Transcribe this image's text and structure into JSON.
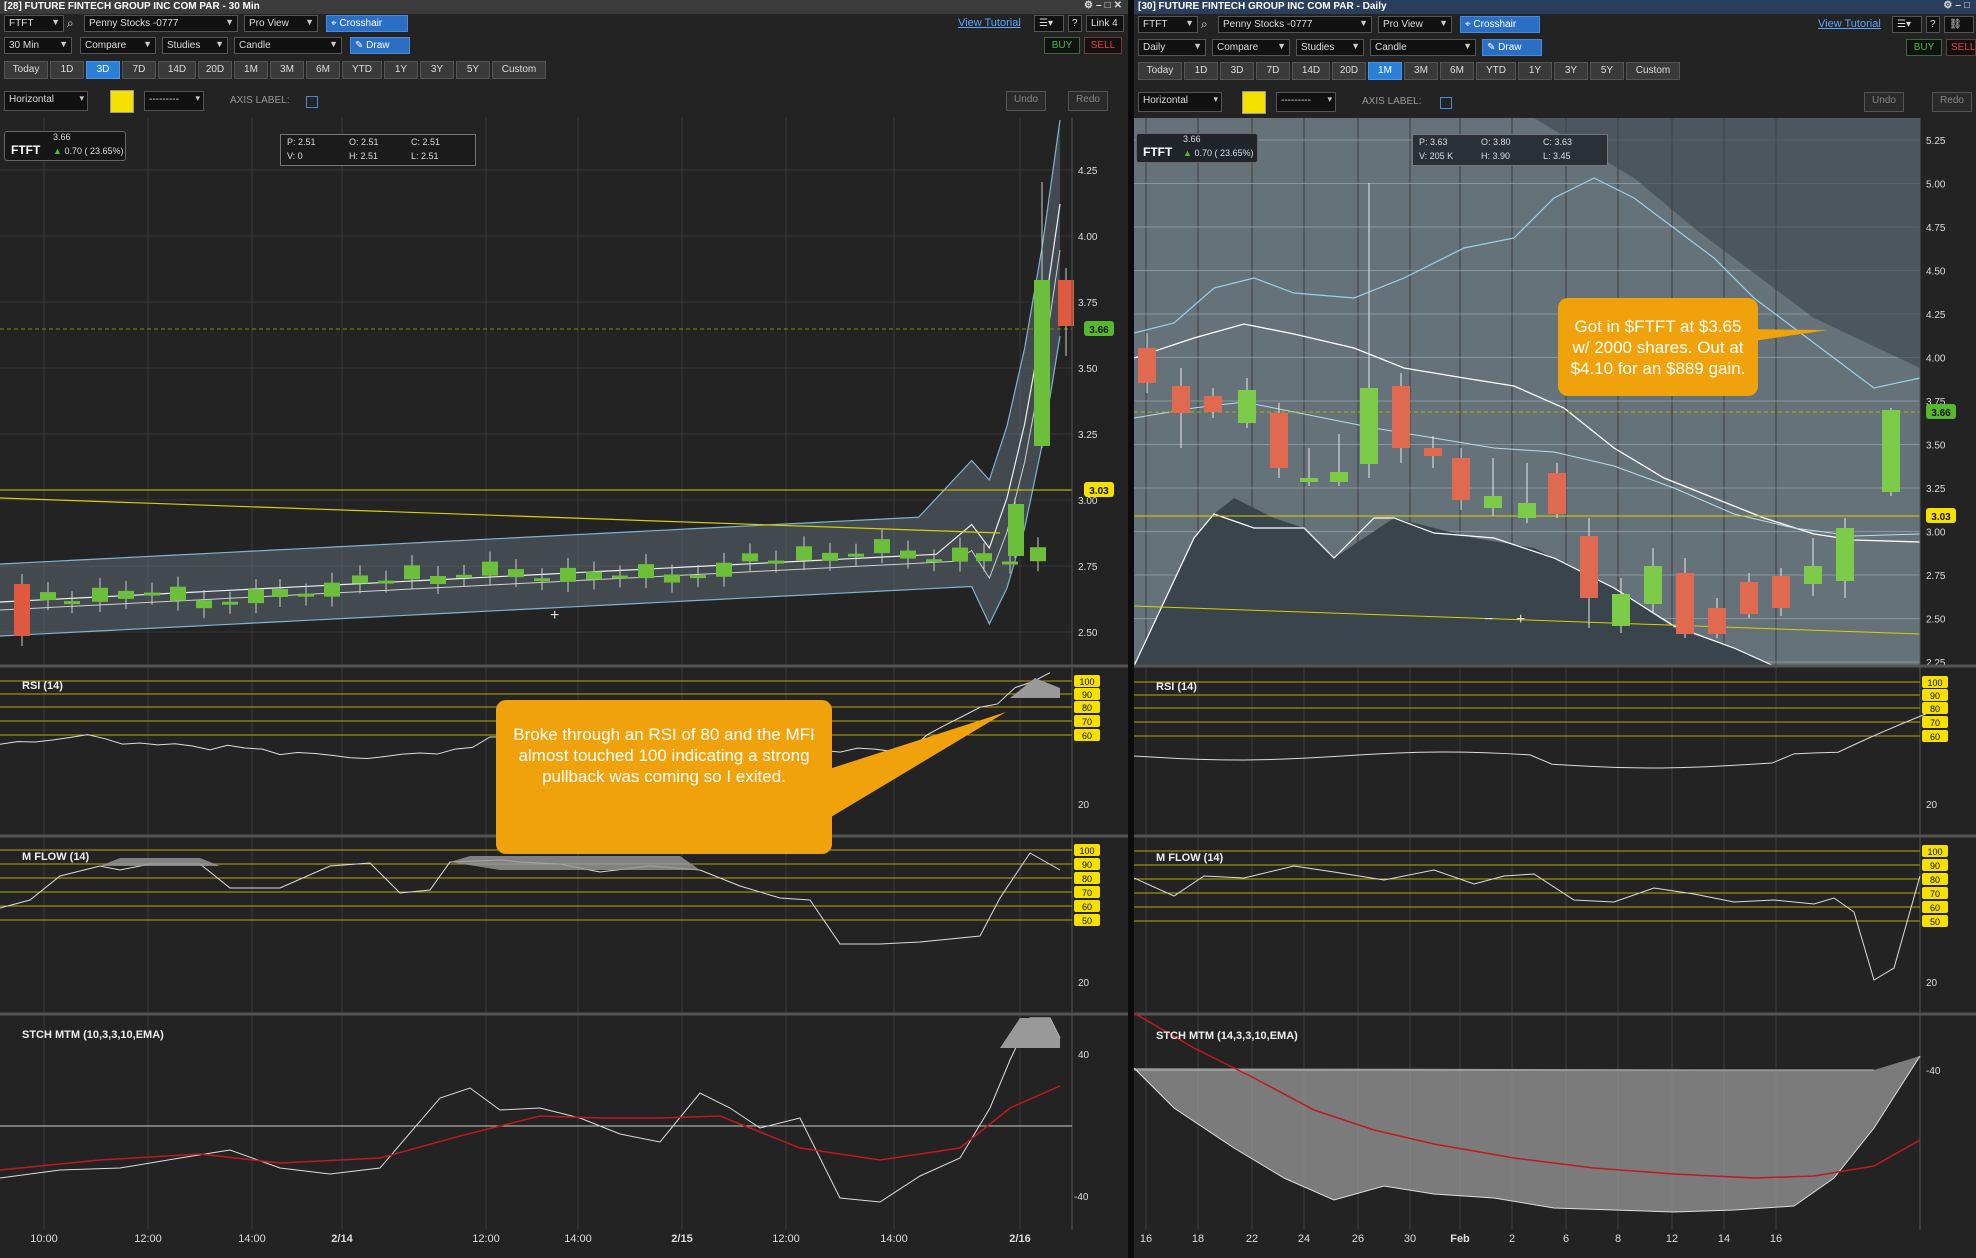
{
  "left": {
    "title": "[28] FUTURE FINTECH GROUP INC COM PAR - 30 Min",
    "symbol": "FTFT",
    "watchlist": "Penny Stocks -0777",
    "view": "Pro View",
    "crosshair": "Crosshair",
    "tutorial": "View Tutorial",
    "link": "Link 4",
    "interval": "30 Min",
    "compare": "Compare",
    "studies": "Studies",
    "style": "Candle",
    "draw": "Draw",
    "buy": "BUY",
    "sell": "SELL",
    "ranges": [
      "Today",
      "1D",
      "3D",
      "7D",
      "14D",
      "20D",
      "1M",
      "3M",
      "6M",
      "YTD",
      "1Y",
      "3Y",
      "5Y",
      "Custom"
    ],
    "active_range": "3D",
    "draw_tool": "Horizontal",
    "line_style": "---------",
    "axis_label": "AXIS LABEL:",
    "undo": "Undo",
    "redo": "Redo",
    "quote": {
      "price": "3.66",
      "change": "0.70 ( 23.65%)"
    },
    "ohlc": {
      "p": "P: 2.51",
      "o": "O: 2.51",
      "c": "C: 2.51",
      "v": "V: 0",
      "h": "H: 2.51",
      "l": "L: 2.51"
    },
    "price_axis": [
      "4.25",
      "4.00",
      "3.75",
      "3.50",
      "3.25",
      "3.00",
      "2.75",
      "2.50"
    ],
    "current_price_tag": "3.66",
    "level_tag": "3.03",
    "rsi_label": "RSI (14)",
    "rsi_levels": [
      "100",
      "90",
      "80",
      "70",
      "60"
    ],
    "rsi_low": "20",
    "mfi_label": "M FLOW (14)",
    "mfi_levels": [
      "100",
      "90",
      "80",
      "70",
      "60",
      "50"
    ],
    "mfi_low": "20",
    "stoch_label": "STCH MTM (10,3,3,10,EMA)",
    "stoch_axis": [
      "40",
      "-40"
    ],
    "time_axis": [
      "10:00",
      "12:00",
      "14:00",
      "2/14",
      "12:00",
      "14:00",
      "2/15",
      "12:00",
      "14:00",
      "2/16"
    ],
    "callout": "Broke through an RSI of 80 and the MFI almost touched 100 indicating a strong pullback was coming so I exited."
  },
  "right": {
    "title": "[30] FUTURE FINTECH GROUP INC COM PAR - Daily",
    "symbol": "FTFT",
    "watchlist": "Penny Stocks -0777",
    "view": "Pro View",
    "crosshair": "Crosshair",
    "tutorial": "View Tutorial",
    "interval": "Daily",
    "compare": "Compare",
    "studies": "Studies",
    "style": "Candle",
    "draw": "Draw",
    "buy": "BUY",
    "sell": "SELL",
    "ranges": [
      "Today",
      "1D",
      "3D",
      "7D",
      "14D",
      "20D",
      "1M",
      "3M",
      "6M",
      "YTD",
      "1Y",
      "3Y",
      "5Y",
      "Custom"
    ],
    "active_range": "1M",
    "draw_tool": "Horizontal",
    "line_style": "---------",
    "axis_label": "AXIS LABEL:",
    "undo": "Undo",
    "redo": "Redo",
    "quote": {
      "price": "3.66",
      "change": "0.70 ( 23.65%)"
    },
    "ohlc": {
      "p": "P: 3.63",
      "o": "O: 3.80",
      "c": "C: 3.63",
      "v": "V: 205 K",
      "h": "H: 3.90",
      "l": "L: 3.45"
    },
    "price_axis": [
      "5.25",
      "5.00",
      "4.75",
      "4.50",
      "4.25",
      "4.00",
      "3.75",
      "3.50",
      "3.25",
      "3.00",
      "2.75",
      "2.50",
      "2.25"
    ],
    "current_price_tag": "3.66",
    "level_tag": "3.03",
    "rsi_label": "RSI (14)",
    "rsi_levels": [
      "100",
      "90",
      "80",
      "70",
      "60"
    ],
    "rsi_low": "20",
    "mfi_label": "M FLOW (14)",
    "mfi_levels": [
      "100",
      "90",
      "80",
      "70",
      "60",
      "50"
    ],
    "mfi_low": "20",
    "stoch_label": "STCH MTM (14,3,3,10,EMA)",
    "stoch_axis": [
      "-40"
    ],
    "time_axis": [
      "16",
      "18",
      "22",
      "24",
      "26",
      "30",
      "Feb",
      "2",
      "6",
      "8",
      "12",
      "14",
      "16"
    ],
    "callout": "Got in $FTFT at $3.65 w/ 2000 shares.  Out at $4.10 for an $889 gain."
  },
  "colors": {
    "up": "#6cbf3a",
    "down": "#e05a42",
    "accent": "#2b7fd6",
    "callout": "#f0a20c",
    "tag_yellow": "#f5e000",
    "tag_green": "#56b82f"
  }
}
